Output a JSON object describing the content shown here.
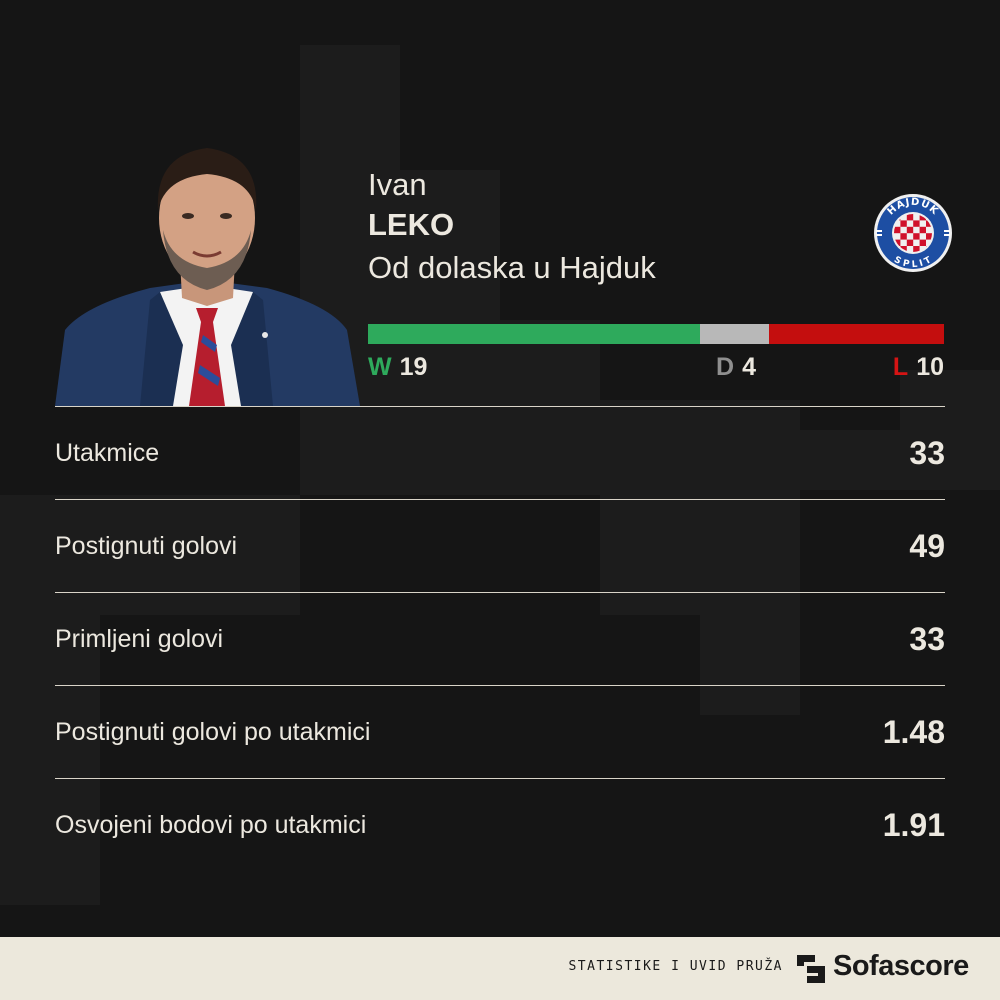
{
  "coach": {
    "first_name": "Ivan",
    "last_name": "LEKO",
    "subtitle": "Od dolaska u Hajduk"
  },
  "club_badge": {
    "top_text": "HAJDUK",
    "bottom_text": "SPLIT"
  },
  "results": {
    "wins": {
      "letter": "W",
      "value": "19",
      "count": 19,
      "color": "#2eaa5c"
    },
    "draws": {
      "letter": "D",
      "value": "4",
      "count": 4,
      "color": "#b8b8b8"
    },
    "losses": {
      "letter": "L",
      "value": "10",
      "count": 10,
      "color": "#c40e0e"
    }
  },
  "stats": [
    {
      "label": "Utakmice",
      "value": "33"
    },
    {
      "label": "Postignuti golovi",
      "value": "49"
    },
    {
      "label": "Primljeni golovi",
      "value": "33"
    },
    {
      "label": "Postignuti golovi po utakmici",
      "value": "1.48"
    },
    {
      "label": "Osvojeni bodovi po utakmici",
      "value": "1.91"
    }
  ],
  "footer": {
    "credit": "STATISTIKE I UVID PRUŽA",
    "brand": "Sofascore"
  }
}
